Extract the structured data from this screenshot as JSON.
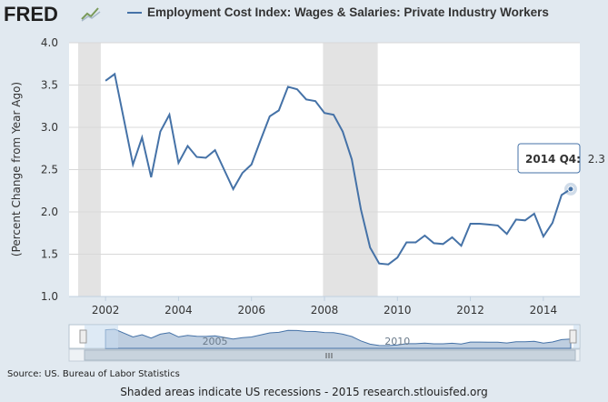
{
  "header": {
    "logo_text": "FRED",
    "logo_icon": "fred-chart-icon"
  },
  "legend": {
    "series_name": "Employment Cost Index: Wages & Salaries: Private Industry Workers",
    "color": "#4572a7"
  },
  "tooltip": {
    "label": "2014 Q4:",
    "value": "2.3"
  },
  "navigator": {
    "labels": [
      "2005",
      "2010"
    ],
    "scroll_icon": "scroll-grip-icon"
  },
  "source": "Source: US. Bureau of Labor Statistics",
  "footer": "Shaded areas indicate US recessions - 2015 research.stlouisfed.org",
  "chart_data": {
    "type": "line",
    "title": "",
    "xlabel": "",
    "ylabel": "(Percent Change from Year Ago)",
    "xlim": [
      2001.0,
      2015.0
    ],
    "ylim": [
      1.0,
      4.0
    ],
    "xticks": [
      2002,
      2004,
      2006,
      2008,
      2010,
      2012,
      2014
    ],
    "yticks": [
      1.0,
      1.5,
      2.0,
      2.5,
      3.0,
      3.5,
      4.0
    ],
    "ytick_labels": [
      "1.0",
      "1.5",
      "2.0",
      "2.5",
      "3.0",
      "3.5",
      "4.0"
    ],
    "grid": "horizontal",
    "line_color": "#4572a7",
    "recessions": [
      [
        2001.25,
        2001.87
      ],
      [
        2007.96,
        2009.46
      ]
    ],
    "series": [
      {
        "name": "Employment Cost Index: Wages & Salaries: Private Industry Workers",
        "x": [
          2002.0,
          2002.25,
          2002.5,
          2002.75,
          2003.0,
          2003.25,
          2003.5,
          2003.75,
          2004.0,
          2004.25,
          2004.5,
          2004.75,
          2005.0,
          2005.25,
          2005.5,
          2005.75,
          2006.0,
          2006.25,
          2006.5,
          2006.75,
          2007.0,
          2007.25,
          2007.5,
          2007.75,
          2008.0,
          2008.25,
          2008.5,
          2008.75,
          2009.0,
          2009.25,
          2009.5,
          2009.75,
          2010.0,
          2010.25,
          2010.5,
          2010.75,
          2011.0,
          2011.25,
          2011.5,
          2011.75,
          2012.0,
          2012.25,
          2012.5,
          2012.75,
          2013.0,
          2013.25,
          2013.5,
          2013.75,
          2014.0,
          2014.25,
          2014.5,
          2014.75
        ],
        "values": [
          3.55,
          3.63,
          3.1,
          2.56,
          2.88,
          2.41,
          2.95,
          3.15,
          2.58,
          2.78,
          2.65,
          2.64,
          2.73,
          2.5,
          2.27,
          2.46,
          2.56,
          2.85,
          3.13,
          3.2,
          3.48,
          3.45,
          3.33,
          3.31,
          3.17,
          3.15,
          2.95,
          2.62,
          2.03,
          1.58,
          1.39,
          1.38,
          1.46,
          1.64,
          1.64,
          1.72,
          1.63,
          1.62,
          1.7,
          1.6,
          1.86,
          1.86,
          1.85,
          1.84,
          1.74,
          1.91,
          1.9,
          1.98,
          1.71,
          1.87,
          2.2,
          2.27
        ]
      }
    ]
  }
}
